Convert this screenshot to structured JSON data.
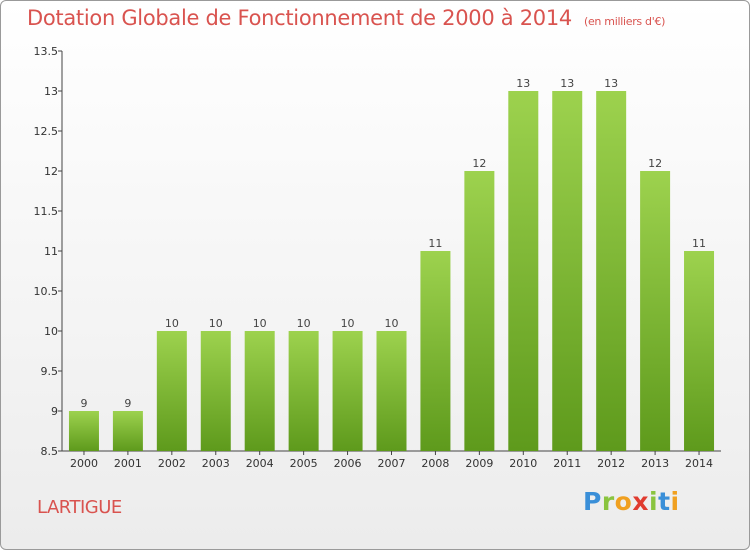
{
  "chart_data": {
    "type": "bar",
    "title": "Dotation Globale de Fonctionnement de 2000 à 2014",
    "subtitle": "(en milliers d'€)",
    "categories": [
      "2000",
      "2001",
      "2002",
      "2003",
      "2004",
      "2005",
      "2006",
      "2007",
      "2008",
      "2009",
      "2010",
      "2011",
      "2012",
      "2013",
      "2014"
    ],
    "values": [
      9,
      9,
      10,
      10,
      10,
      10,
      10,
      10,
      11,
      12,
      13,
      13,
      13,
      12,
      11
    ],
    "value_labels": [
      "9",
      "9",
      "10",
      "10",
      "10",
      "10",
      "10",
      "10",
      "11",
      "12",
      "13",
      "13",
      "13",
      "12",
      "11"
    ],
    "ylim": [
      8.5,
      13.5
    ],
    "yticks": [
      8.5,
      9,
      9.5,
      10,
      10.5,
      11,
      11.5,
      12,
      12.5,
      13,
      13.5
    ],
    "ytick_labels": [
      "8.5",
      "9",
      "9.5",
      "10",
      "10.5",
      "11",
      "11.5",
      "12",
      "12.5",
      "13",
      "13.5"
    ],
    "grid": false,
    "colors": {
      "bar_top": "#9dd24e",
      "bar_bottom": "#5e9a1c",
      "title": "#d9534f"
    }
  },
  "commune": "LARTIGUE",
  "logo": {
    "letters": [
      "P",
      "r",
      "o",
      "x",
      "i",
      "t",
      "i"
    ],
    "colors": [
      "#3a8fd8",
      "#8ac43f",
      "#f0a020",
      "#e03b2f",
      "#8ac43f",
      "#3a8fd8",
      "#f0a020"
    ]
  }
}
